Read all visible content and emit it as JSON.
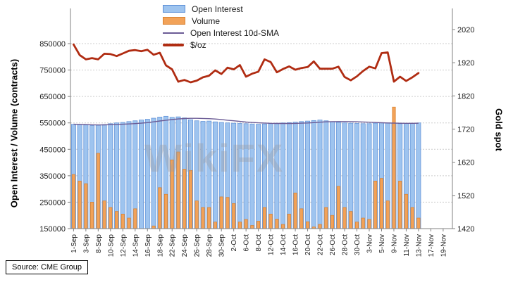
{
  "source_label": "Source: CME Group",
  "watermark": "WikiFX",
  "chart_data": {
    "type": "bar+line combo (dual axis)",
    "title": "",
    "legend_position": "top-center-left inside",
    "layout": {
      "bars_per_tick": 2,
      "grid": "horizontal-dashed"
    },
    "left_axis": {
      "label": "Open Interest / Volume (contracts)",
      "min": 150000,
      "max": 850000,
      "ticks": [
        150000,
        250000,
        350000,
        450000,
        550000,
        650000,
        750000,
        850000
      ]
    },
    "right_axis": {
      "label": "Gold spot",
      "min": 1420,
      "max": 2020,
      "ticks": [
        1420,
        1520,
        1620,
        1720,
        1820,
        1920,
        2020
      ]
    },
    "x_tick_labels": [
      "1-Sep",
      "3-Sep",
      "8-Sep",
      "10-Sep",
      "12-Sep",
      "14-Sep",
      "16-Sep",
      "18-Sep",
      "22-Sep",
      "24-Sep",
      "26-Sep",
      "28-Sep",
      "30-Sep",
      "2-Oct",
      "6-Oct",
      "8-Oct",
      "12-Oct",
      "14-Oct",
      "16-Oct",
      "20-Oct",
      "22-Oct",
      "26-Oct",
      "28-Oct",
      "30-Oct",
      "3-Nov",
      "5-Nov",
      "9-Nov",
      "11-Nov",
      "13-Nov",
      "17-Nov",
      "19-Nov"
    ],
    "series": [
      {
        "name": "Open Interest",
        "type": "bar",
        "axis": "left",
        "color": "#9ec4ef",
        "stroke": "#5b8ed6",
        "values": [
          545000,
          544000,
          542000,
          540000,
          541000,
          544000,
          547000,
          550000,
          552000,
          555000,
          558000,
          561000,
          564000,
          568000,
          572000,
          575000,
          571000,
          573000,
          569000,
          562000,
          558000,
          556000,
          557000,
          554000,
          552000,
          550000,
          549000,
          548000,
          547000,
          546000,
          545000,
          546000,
          547000,
          549000,
          550000,
          551000,
          553000,
          555000,
          557000,
          559000,
          561000,
          558000,
          555000,
          552000,
          550000,
          549000,
          548000,
          547000,
          547000,
          549000,
          551000,
          550000,
          549000,
          547000,
          548000,
          549000,
          550000
        ]
      },
      {
        "name": "Volume",
        "type": "bar",
        "axis": "left",
        "color": "#f2a258",
        "stroke": "#d8812f",
        "values": [
          355000,
          330000,
          320000,
          250000,
          435000,
          255000,
          230000,
          215000,
          205000,
          190000,
          225000,
          150000,
          140000,
          160000,
          305000,
          280000,
          410000,
          440000,
          375000,
          370000,
          255000,
          230000,
          230000,
          175000,
          270000,
          268000,
          245000,
          175000,
          185000,
          162000,
          178000,
          230000,
          205000,
          186000,
          166000,
          205000,
          285000,
          225000,
          176000,
          156000,
          166000,
          230000,
          200000,
          310000,
          230000,
          215000,
          175000,
          190000,
          185000,
          330000,
          340000,
          255000,
          610000,
          330000,
          280000,
          230000,
          190000
        ]
      },
      {
        "name": "Open Interest 10d-SMA",
        "type": "line",
        "axis": "left",
        "color": "#6b5b95",
        "values": [
          545000,
          544500,
          543700,
          542800,
          542400,
          542700,
          543300,
          544100,
          545000,
          546000,
          547300,
          549000,
          551200,
          554000,
          557100,
          560200,
          562600,
          564900,
          566600,
          567300,
          567300,
          566800,
          566100,
          564700,
          562700,
          560200,
          558000,
          555500,
          553300,
          551700,
          550400,
          549400,
          548400,
          547900,
          547700,
          547800,
          548200,
          548900,
          549900,
          551200,
          552800,
          554000,
          554800,
          555100,
          555100,
          554900,
          554400,
          553600,
          552600,
          551600,
          550600,
          549800,
          549200,
          548700,
          548500,
          548500,
          548700
        ]
      },
      {
        "name": "$/oz",
        "type": "line",
        "axis": "right",
        "color": "#b02c12",
        "values": [
          1975,
          1943,
          1930,
          1934,
          1930,
          1947,
          1946,
          1940,
          1948,
          1956,
          1958,
          1955,
          1959,
          1944,
          1950,
          1912,
          1900,
          1863,
          1868,
          1861,
          1866,
          1876,
          1881,
          1897,
          1886,
          1905,
          1900,
          1913,
          1878,
          1887,
          1893,
          1930,
          1922,
          1891,
          1901,
          1909,
          1899,
          1904,
          1907,
          1924,
          1902,
          1902,
          1902,
          1908,
          1877,
          1867,
          1879,
          1895,
          1908,
          1903,
          1949,
          1951,
          1863,
          1878,
          1865,
          1876,
          1889
        ]
      }
    ]
  }
}
